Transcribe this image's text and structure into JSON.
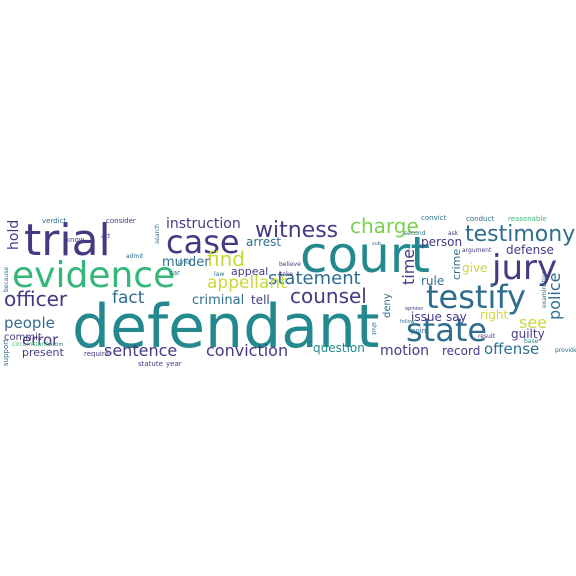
{
  "palette": {
    "navy": "#3b1f6b",
    "indigo": "#443a83",
    "blue": "#3d5a8c",
    "slate": "#2f6d8e",
    "teal": "#23898e",
    "green": "#35b779",
    "lime": "#7ad151",
    "yellow": "#c9d93a"
  },
  "words": [
    {
      "text": "defendant",
      "color": "teal"
    },
    {
      "text": "court",
      "color": "teal"
    },
    {
      "text": "trial",
      "color": "indigo"
    },
    {
      "text": "evidence",
      "color": "green"
    },
    {
      "text": "case",
      "color": "indigo"
    },
    {
      "text": "jury",
      "color": "indigo"
    },
    {
      "text": "testify",
      "color": "slate"
    },
    {
      "text": "state",
      "color": "slate"
    },
    {
      "text": "testimony",
      "color": "slate"
    },
    {
      "text": "witness",
      "color": "indigo"
    },
    {
      "text": "charge",
      "color": "lime"
    },
    {
      "text": "officer",
      "color": "indigo"
    },
    {
      "text": "counsel",
      "color": "indigo"
    },
    {
      "text": "statement",
      "color": "slate"
    },
    {
      "text": "find",
      "color": "yellow"
    },
    {
      "text": "appellant",
      "color": "yellow"
    },
    {
      "text": "fact",
      "color": "slate"
    },
    {
      "text": "people",
      "color": "slate"
    },
    {
      "text": "error",
      "color": "indigo"
    },
    {
      "text": "sentence",
      "color": "indigo"
    },
    {
      "text": "conviction",
      "color": "indigo"
    },
    {
      "text": "police",
      "color": "slate"
    },
    {
      "text": "see",
      "color": "yellow"
    },
    {
      "text": "hold",
      "color": "indigo"
    },
    {
      "text": "instruction",
      "color": "indigo"
    },
    {
      "text": "arrest",
      "color": "slate"
    },
    {
      "text": "murder",
      "color": "slate"
    },
    {
      "text": "criminal",
      "color": "slate"
    },
    {
      "text": "appeal",
      "color": "indigo"
    },
    {
      "text": "tell",
      "color": "indigo"
    },
    {
      "text": "person",
      "color": "indigo"
    },
    {
      "text": "time",
      "color": "indigo"
    },
    {
      "text": "defense",
      "color": "indigo"
    },
    {
      "text": "rule",
      "color": "slate"
    },
    {
      "text": "give",
      "color": "yellow"
    },
    {
      "text": "right",
      "color": "yellow"
    },
    {
      "text": "guilty",
      "color": "indigo"
    },
    {
      "text": "offense",
      "color": "slate"
    },
    {
      "text": "record",
      "color": "indigo"
    },
    {
      "text": "motion",
      "color": "indigo"
    },
    {
      "text": "question",
      "color": "teal"
    },
    {
      "text": "issue",
      "color": "indigo"
    },
    {
      "text": "say",
      "color": "indigo"
    },
    {
      "text": "crime",
      "color": "slate"
    },
    {
      "text": "deny",
      "color": "slate"
    },
    {
      "text": "present",
      "color": "indigo"
    },
    {
      "text": "commit",
      "color": "indigo"
    },
    {
      "text": "circumstance",
      "color": "green"
    },
    {
      "text": "verdict",
      "color": "slate"
    },
    {
      "text": "know",
      "color": "indigo"
    },
    {
      "text": "consider",
      "color": "indigo"
    },
    {
      "text": "act",
      "color": "indigo"
    },
    {
      "text": "search",
      "color": "slate"
    },
    {
      "text": "admit",
      "color": "slate"
    },
    {
      "text": "require",
      "color": "indigo"
    },
    {
      "text": "year",
      "color": "indigo"
    },
    {
      "text": "statute",
      "color": "indigo"
    },
    {
      "text": "prior",
      "color": "slate"
    },
    {
      "text": "car",
      "color": "slate"
    },
    {
      "text": "law",
      "color": "slate"
    },
    {
      "text": "believe",
      "color": "indigo"
    },
    {
      "text": "take",
      "color": "indigo"
    },
    {
      "text": "second",
      "color": "slate"
    },
    {
      "text": "convict",
      "color": "slate"
    },
    {
      "text": "conduct",
      "color": "slate"
    },
    {
      "text": "reasonable",
      "color": "green"
    },
    {
      "text": "argument",
      "color": "indigo"
    },
    {
      "text": "result",
      "color": "indigo"
    },
    {
      "text": "base",
      "color": "teal"
    },
    {
      "text": "provide",
      "color": "slate"
    },
    {
      "text": "point",
      "color": "slate"
    },
    {
      "text": "opinion",
      "color": "indigo"
    },
    {
      "text": "victim",
      "color": "slate"
    },
    {
      "text": "support",
      "color": "slate"
    },
    {
      "text": "because",
      "color": "slate"
    },
    {
      "text": "ask",
      "color": "indigo"
    },
    {
      "text": "examination",
      "color": "slate"
    },
    {
      "text": "shot",
      "color": "slate"
    },
    {
      "text": "follow",
      "color": "slate"
    },
    {
      "text": "sub",
      "color": "slate"
    }
  ]
}
